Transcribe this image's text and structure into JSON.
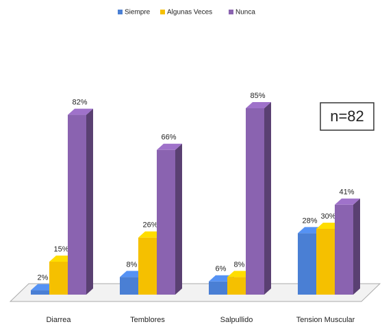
{
  "chart_data": {
    "type": "bar3d",
    "categories": [
      "Diarrea",
      "Temblores",
      "Salpullido",
      "Tension Muscular"
    ],
    "series": [
      {
        "name": "Siempre",
        "color": "#4a7fd4",
        "values": [
          2,
          8,
          6,
          28
        ],
        "value_labels": [
          "2%",
          "8%",
          "6%",
          "28%"
        ]
      },
      {
        "name": "Algunas Veces",
        "color": "#f5c000",
        "values": [
          15,
          26,
          8,
          30
        ],
        "value_labels": [
          "15%",
          "26%",
          "8%",
          "30%"
        ]
      },
      {
        "name": "Nunca",
        "color": "#8a63b0",
        "values": [
          82,
          66,
          85,
          41
        ],
        "value_labels": [
          "82%",
          "66%",
          "85%",
          "41%"
        ]
      }
    ],
    "annotation": "n=82",
    "legend": "top"
  }
}
